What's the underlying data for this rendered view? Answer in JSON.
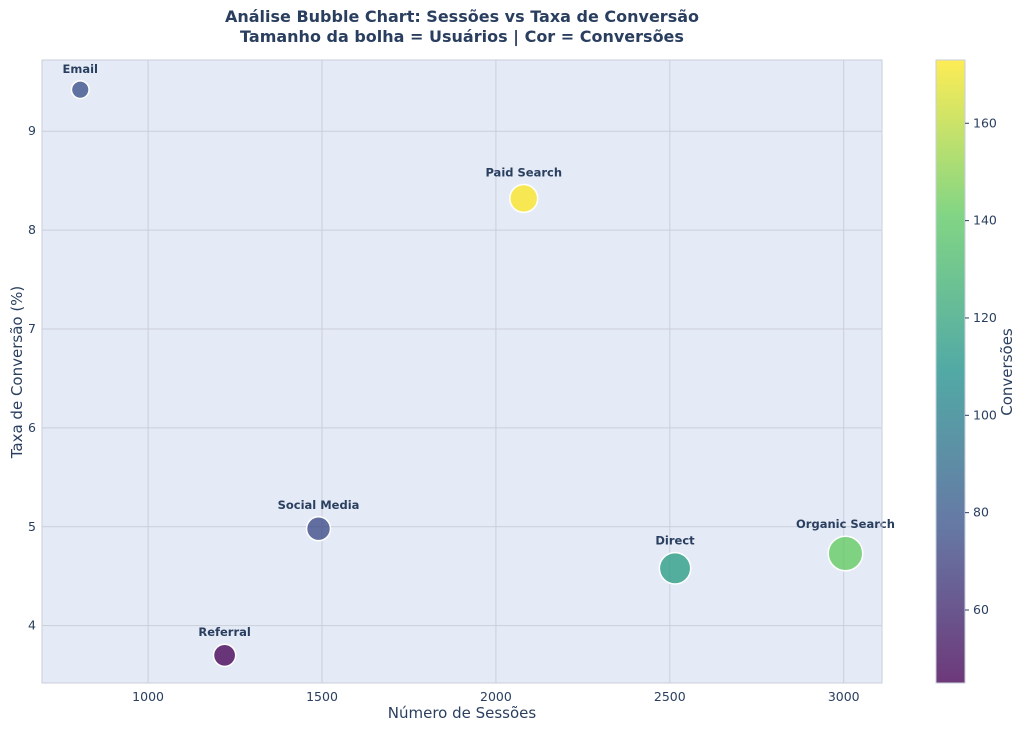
{
  "chart_data": {
    "type": "scatter",
    "title": "Análise Bubble Chart: Sessões vs Taxa de Conversão",
    "subtitle": "Tamanho da bolha = Usuários | Cor = Conversões",
    "xlabel": "Número de Sessões",
    "ylabel": "Taxa de Conversão (%)",
    "colorbar_label": "Conversões",
    "xlim": [
      695,
      3110
    ],
    "ylim": [
      3.42,
      9.72
    ],
    "xticks": [
      1000,
      1500,
      2000,
      2500,
      3000
    ],
    "yticks": [
      4,
      5,
      6,
      7,
      8,
      9
    ],
    "colorbar_range": [
      45,
      173
    ],
    "colorbar_ticks": [
      60,
      80,
      100,
      120,
      140,
      160
    ],
    "grid": true,
    "colormap": [
      "#440154",
      "#3b528b",
      "#21918c",
      "#5ec962",
      "#fde725"
    ],
    "points": [
      {
        "label": "Email",
        "x": 805,
        "y": 9.42,
        "users": 600,
        "conversions": 76
      },
      {
        "label": "Paid Search",
        "x": 2080,
        "y": 8.32,
        "users": 1500,
        "conversions": 173
      },
      {
        "label": "Social Media",
        "x": 1490,
        "y": 4.98,
        "users": 1100,
        "conversions": 74
      },
      {
        "label": "Referral",
        "x": 1220,
        "y": 3.7,
        "users": 950,
        "conversions": 45
      },
      {
        "label": "Direct",
        "x": 2515,
        "y": 4.58,
        "users": 1900,
        "conversions": 115
      },
      {
        "label": "Organic Search",
        "x": 3005,
        "y": 4.73,
        "users": 2300,
        "conversions": 142
      }
    ]
  }
}
